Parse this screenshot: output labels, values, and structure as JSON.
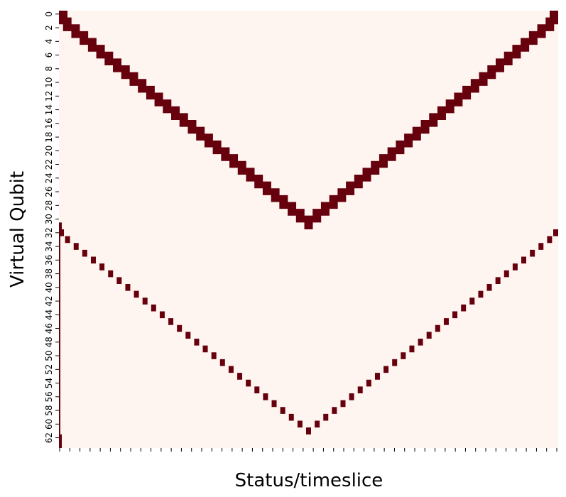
{
  "chart_data": {
    "type": "heatmap",
    "title": "",
    "xlabel": "Status/timeslice",
    "ylabel": "Virtual Qubit",
    "rows": 64,
    "y_tick_labels": [
      "0",
      "2",
      "4",
      "6",
      "8",
      "10",
      "12",
      "14",
      "16",
      "18",
      "20",
      "22",
      "24",
      "26",
      "28",
      "30",
      "32",
      "34",
      "36",
      "38",
      "40",
      "42",
      "44",
      "46",
      "48",
      "50",
      "52",
      "54",
      "56",
      "58",
      "60",
      "62"
    ],
    "x_tick_count": 50,
    "x_tick_labels_shown": false,
    "colorbar": false,
    "grid": false,
    "colors": {
      "background": "#fff5f0",
      "active": "#67000d"
    },
    "patterns": [
      {
        "name": "upper_v",
        "qubit_range": [
          0,
          31
        ],
        "vertex_qubit": 30,
        "band_width_qubits": 2
      },
      {
        "name": "lower_v",
        "qubit_range": [
          32,
          63
        ],
        "vertex_qubit": 61,
        "band_width_qubits": 1
      }
    ]
  }
}
